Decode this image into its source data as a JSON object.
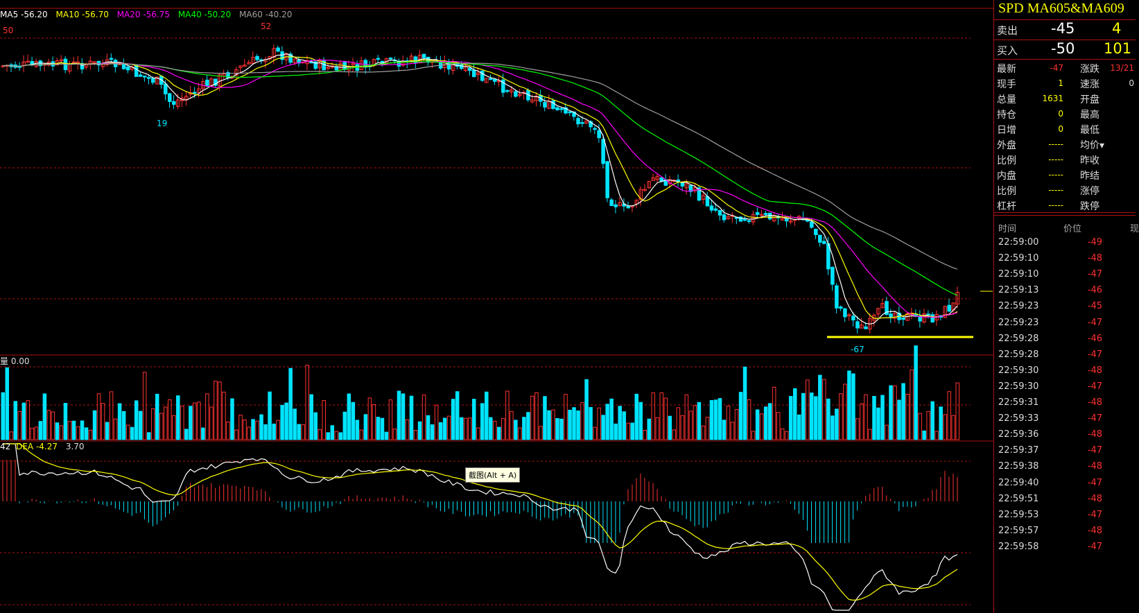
{
  "chart": {
    "ma_legend": [
      {
        "text": "MA5 -56.20",
        "color": "#ffffff"
      },
      {
        "text": "MA10 -56.70",
        "color": "#ffff00"
      },
      {
        "text": "MA20 -56.75",
        "color": "#ff00ff"
      },
      {
        "text": "MA40 -50.20",
        "color": "#00ff00"
      },
      {
        "text": "MA60 -40.20",
        "color": "#a0a0a0"
      }
    ],
    "high_labels": {
      "left": "50",
      "top": "52"
    },
    "low_labels": {
      "local": "19",
      "global": "-67"
    },
    "volume_label": "量 0.00",
    "macd_label": {
      "part1": "42",
      "dea": "DEA -4.27",
      "macd": "3.70"
    },
    "tooltip": "截图(Alt + A)",
    "colors": {
      "up": "#ff3232",
      "down": "#00e4ff",
      "grid": "#b01010",
      "support": "#ffff00"
    }
  },
  "quote": {
    "title": "SPD  MA605&MA609",
    "sell": {
      "label": "卖出",
      "price": "-45",
      "qty": "4"
    },
    "buy": {
      "label": "买入",
      "price": "-50",
      "qty": "101"
    },
    "stats": [
      {
        "l": "最新",
        "lv": "-47",
        "lc": "#ff3030",
        "r": "涨跌",
        "rv": "13/21",
        "rc": "#ff3030"
      },
      {
        "l": "现手",
        "lv": "1",
        "lc": "#ffff00",
        "r": "速涨",
        "rv": "0",
        "rc": "#ddd"
      },
      {
        "l": "总量",
        "lv": "1631",
        "lc": "#ffff00",
        "r": "开盘",
        "rv": "",
        "rc": "#ddd"
      },
      {
        "l": "持仓",
        "lv": "0",
        "lc": "#ffff00",
        "r": "最高",
        "rv": "",
        "rc": "#ddd"
      },
      {
        "l": "日增",
        "lv": "0",
        "lc": "#ffff00",
        "r": "最低",
        "rv": "",
        "rc": "#ddd"
      },
      {
        "l": "外盘",
        "lv": "-----",
        "lc": "#ffff00",
        "r": "均价▾",
        "rv": "",
        "rc": "#ddd"
      },
      {
        "l": "比例",
        "lv": "-----",
        "lc": "#ffff00",
        "r": "昨收",
        "rv": "",
        "rc": "#ddd"
      },
      {
        "l": "内盘",
        "lv": "-----",
        "lc": "#ffff00",
        "r": "昨结",
        "rv": "",
        "rc": "#ddd"
      },
      {
        "l": "比例",
        "lv": "-----",
        "lc": "#ffff00",
        "r": "涨停",
        "rv": "",
        "rc": "#ddd"
      },
      {
        "l": "杠杆",
        "lv": "-----",
        "lc": "#ffff00",
        "r": "跌停",
        "rv": "",
        "rc": "#ddd"
      }
    ],
    "ticks_header": {
      "time": "时间",
      "price": "价位",
      "extra": "现"
    },
    "ticks": [
      {
        "time": "22:59:00",
        "price": "-49"
      },
      {
        "time": "22:59:10",
        "price": "-48"
      },
      {
        "time": "22:59:10",
        "price": "-47"
      },
      {
        "time": "22:59:13",
        "price": "-46"
      },
      {
        "time": "22:59:23",
        "price": "-45"
      },
      {
        "time": "22:59:23",
        "price": "-47"
      },
      {
        "time": "22:59:28",
        "price": "-46"
      },
      {
        "time": "22:59:28",
        "price": "-47"
      },
      {
        "time": "22:59:30",
        "price": "-48"
      },
      {
        "time": "22:59:30",
        "price": "-47"
      },
      {
        "time": "22:59:31",
        "price": "-48"
      },
      {
        "time": "22:59:33",
        "price": "-47"
      },
      {
        "time": "22:59:36",
        "price": "-48"
      },
      {
        "time": "22:59:37",
        "price": "-47"
      },
      {
        "time": "22:59:38",
        "price": "-48"
      },
      {
        "time": "22:59:40",
        "price": "-47"
      },
      {
        "time": "22:59:51",
        "price": "-48"
      },
      {
        "time": "22:59:53",
        "price": "-47"
      },
      {
        "time": "22:59:57",
        "price": "-48"
      },
      {
        "time": "22:59:58",
        "price": "-47"
      }
    ]
  }
}
